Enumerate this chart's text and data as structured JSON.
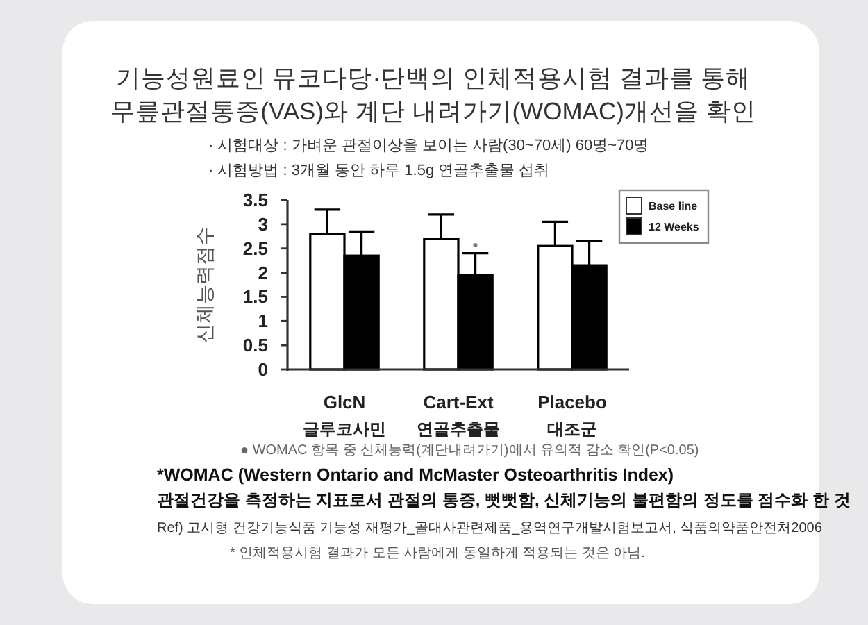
{
  "chart_data": {
    "type": "bar",
    "title": "기능성원료인 뮤코다당·단백의 인체적용시험 결과를 통해\n무릎관절통증(VAS)와 계단 내려가기(WOMAC)개선을 확인",
    "subtitle": "· 시험대상 : 가벼운 관절이상을 보이는 사람(30~70세) 60명~70명\n· 시험방법 : 3개월 동안 하루 1.5g 연골추출물 섭취",
    "ylabel": "신체능력점수",
    "categories": [
      "GlcN\n글루코사민",
      "Cart-Ext\n연골추출물",
      "Placebo\n대조군"
    ],
    "series": [
      {
        "name": "Base line",
        "color": "#ffffff",
        "values": [
          2.8,
          2.7,
          2.55
        ],
        "errors": [
          [
            2.8,
            3.3
          ],
          [
            2.7,
            3.2
          ],
          [
            2.55,
            3.05
          ]
        ]
      },
      {
        "name": "12 Weeks",
        "color": "#000000",
        "values": [
          2.35,
          1.95,
          2.15
        ],
        "errors": [
          [
            2.35,
            2.85
          ],
          [
            1.95,
            2.4
          ],
          [
            2.15,
            2.65
          ]
        ]
      }
    ],
    "ylim": [
      0,
      3.5
    ],
    "yticks": [
      0,
      0.5,
      1,
      1.5,
      2,
      2.5,
      3,
      3.5
    ],
    "legend": "top right",
    "annotations": [
      {
        "text": "●",
        "x": "Cart-Ext\n연골추출물",
        "y": 2.6
      },
      "● WOMAC 항목 중 신체능력(계단내려가기)에서 유의적 감소 확인(P<0.05)",
      "*WOMAC (Western Ontario and McMaster Osteoarthritis Index)",
      "관절건강을 측정하는 지표로서 관절의 통증, 뻣뻣함, 신체기능의 불편함의 정도를 점수화 한 것",
      "Ref) 고시형 건강기능식품 기능성 재평가_골대사관련제품_용역연구개발시험보고서, 식품의약품안전처2006",
      "* 인체적용시험 결과가 모든 사람에게 동일하게 적용되는 것은 아님."
    ]
  }
}
